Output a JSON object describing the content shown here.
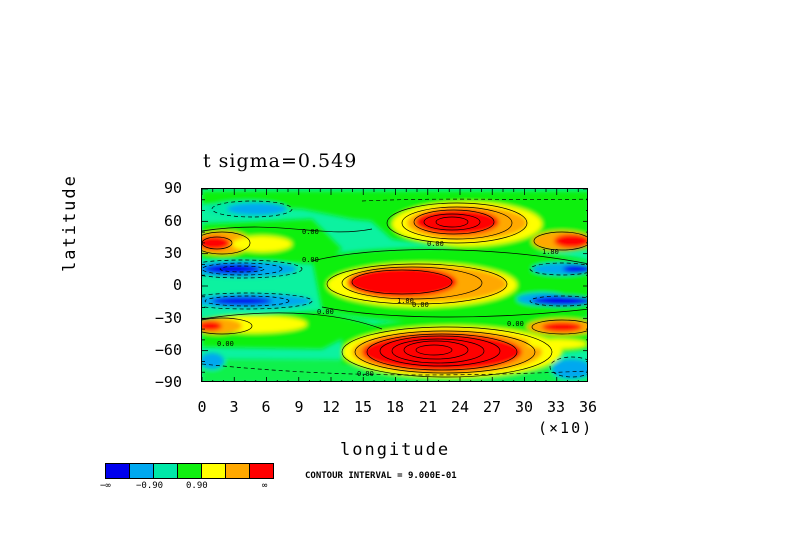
{
  "chart_data": {
    "type": "heatmap",
    "title": "t  sigma=0.549",
    "xlabel": "longitude",
    "ylabel": "latitude",
    "x_multiplier_label": "(×10)",
    "xlim": [
      0,
      36
    ],
    "ylim": [
      -90,
      90
    ],
    "xticks": [
      "0",
      "3",
      "6",
      "9",
      "12",
      "15",
      "18",
      "21",
      "24",
      "27",
      "30",
      "33",
      "36"
    ],
    "yticks": [
      "90",
      "60",
      "30",
      "0",
      "−30",
      "−60",
      "−90"
    ],
    "colorbar": {
      "colors": [
        "#0000ee",
        "#00a8f0",
        "#00e8a8",
        "#10f010",
        "#ffff00",
        "#ffa800",
        "#ff0000"
      ],
      "labels": [
        "−∞",
        "−0.90",
        "0.90",
        "∞"
      ]
    },
    "contour_interval": "CONTOUR INTERVAL = 9.000E-01",
    "contour_labels": [
      "0.00",
      "0.00",
      "0.00",
      "0.00",
      "0.00",
      "0.00",
      "0.00",
      "0.00",
      "1.80",
      "1.80"
    ]
  }
}
